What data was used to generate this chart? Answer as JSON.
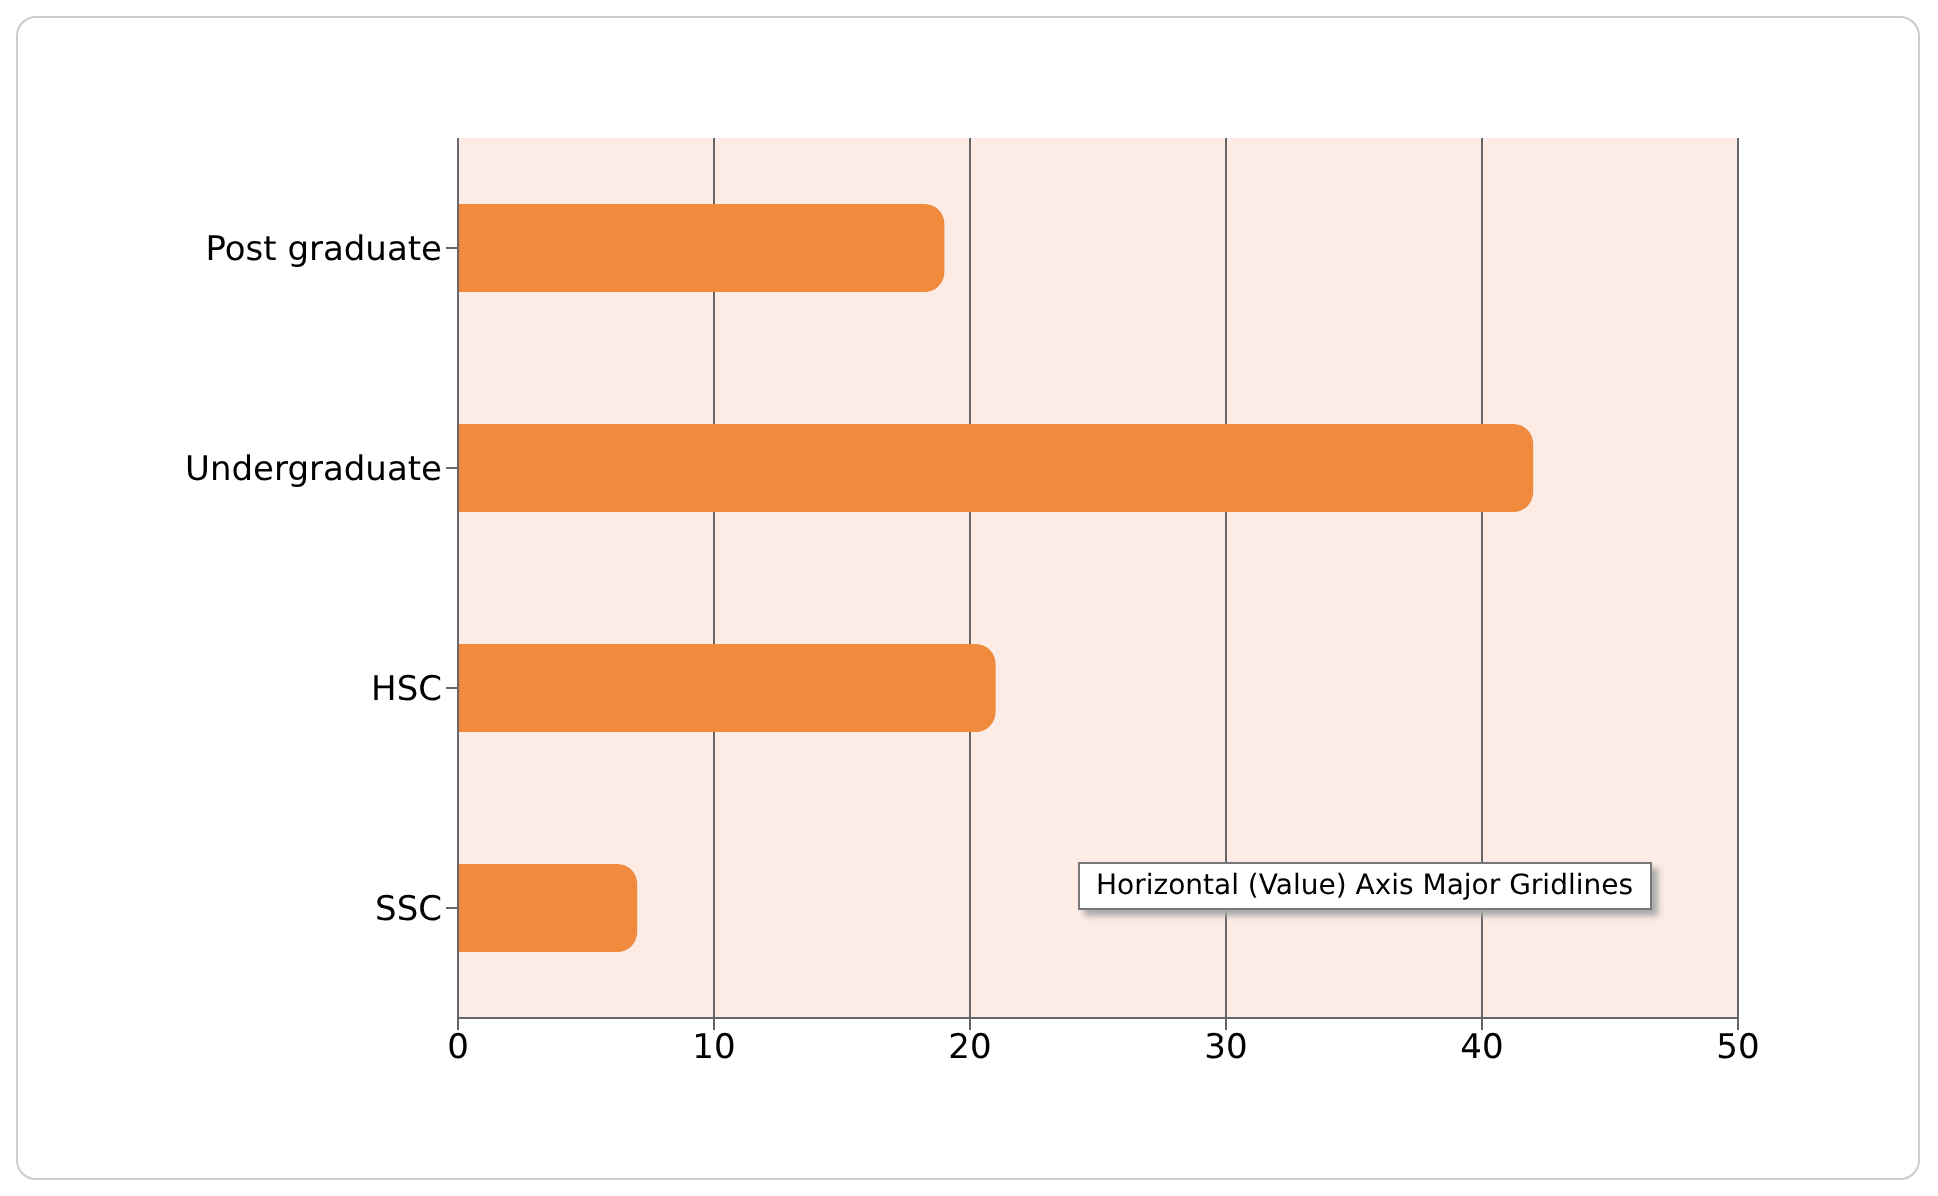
{
  "chart_data": {
    "type": "bar",
    "orientation": "horizontal",
    "categories": [
      "Post graduate",
      "Undergraduate",
      "HSC",
      "SSC"
    ],
    "values": [
      19,
      42,
      21,
      7
    ],
    "color": "#f08a3c",
    "xlim": [
      0,
      50
    ],
    "xticks": [
      0,
      10,
      20,
      30,
      40,
      50
    ],
    "grid": "x",
    "annotations": [
      "Horizontal (Value) Axis Major Gridlines"
    ]
  }
}
